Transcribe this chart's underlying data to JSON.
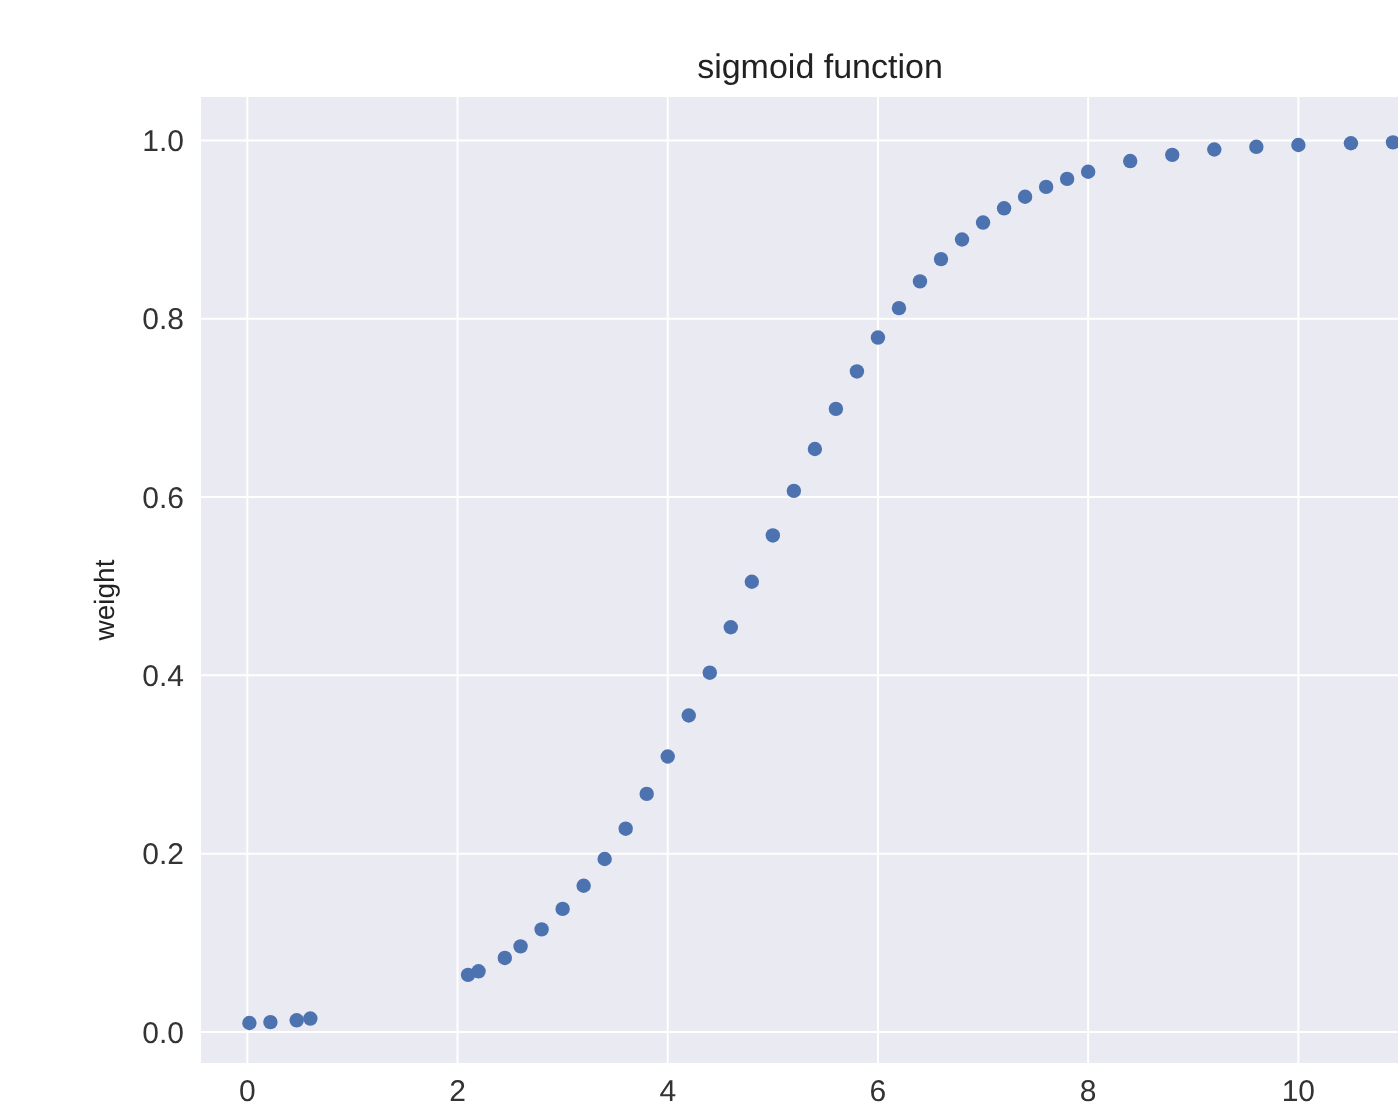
{
  "chart_data": {
    "type": "scatter",
    "title": "sigmoid function",
    "ylabel": "weight",
    "x": [
      0.02,
      0.22,
      0.47,
      0.6,
      2.1,
      2.2,
      2.45,
      2.6,
      2.8,
      3.0,
      3.2,
      3.4,
      3.6,
      3.8,
      4.0,
      4.2,
      4.4,
      4.6,
      4.8,
      5.0,
      5.2,
      5.4,
      5.6,
      5.8,
      6.0,
      6.2,
      6.4,
      6.6,
      6.8,
      7.0,
      7.2,
      7.4,
      7.6,
      7.8,
      8.0,
      8.4,
      8.8,
      9.2,
      9.6,
      10.0,
      10.5,
      10.9
    ],
    "series": [
      {
        "color": "#4c72b0",
        "values": [
          0.01,
          0.011,
          0.013,
          0.015,
          0.064,
          0.068,
          0.083,
          0.096,
          0.115,
          0.138,
          0.164,
          0.194,
          0.228,
          0.267,
          0.309,
          0.355,
          0.403,
          0.454,
          0.505,
          0.557,
          0.607,
          0.654,
          0.699,
          0.741,
          0.779,
          0.812,
          0.842,
          0.867,
          0.889,
          0.908,
          0.924,
          0.937,
          0.948,
          0.957,
          0.965,
          0.977,
          0.984,
          0.99,
          0.993,
          0.995,
          0.997,
          0.998
        ]
      }
    ],
    "xlim": [
      -0.45,
      11.1
    ],
    "ylim": [
      -0.036,
      1.05
    ],
    "xticks": [
      0,
      2,
      4,
      6,
      8,
      10
    ],
    "yticks": [
      {
        "value": 0,
        "label": "0.0"
      },
      0.2,
      0.4,
      0.6,
      0.8,
      {
        "value": 1,
        "label": "1.0"
      }
    ],
    "grid": true,
    "legend": false,
    "marker": "circle"
  }
}
